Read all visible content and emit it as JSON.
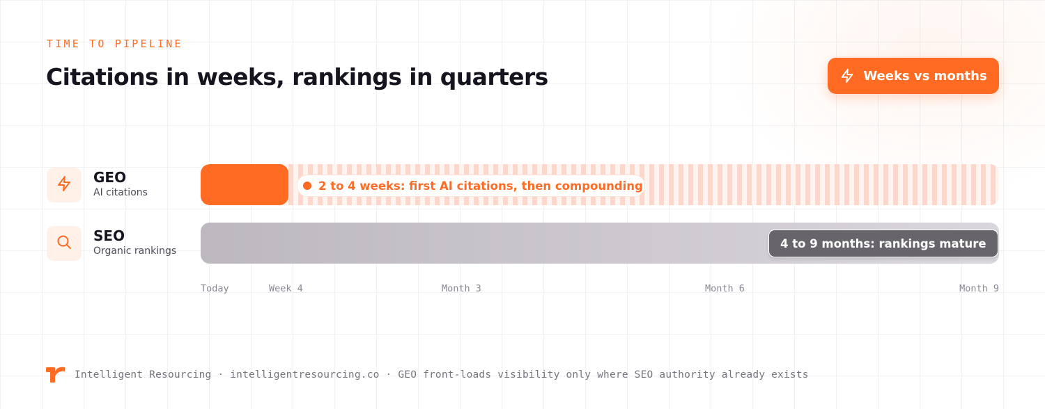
{
  "header": {
    "eyebrow": "TIME TO PIPELINE",
    "title": "Citations in weeks, rankings in quarters",
    "pill_label": "Weeks vs months",
    "pill_icon": "lightning-icon"
  },
  "rows": [
    {
      "name": "GEO",
      "subtitle": "AI citations",
      "icon": "lightning-icon",
      "callout": "2 to 4 weeks: first AI citations, then compounding",
      "fill_end_fraction": 0.11
    },
    {
      "name": "SEO",
      "subtitle": "Organic rankings",
      "icon": "search-icon",
      "callout": "4 to 9 months: rankings mature",
      "fill_end_fraction": 1.0
    }
  ],
  "timeline": {
    "ticks": [
      "Today",
      "Week 4",
      "Month 3",
      "Month 6",
      "Month 9"
    ]
  },
  "footer": {
    "text": "Intelligent Resourcing · intelligentresourcing.co · GEO front-loads visibility only where SEO authority already exists"
  },
  "colors": {
    "accent": "#ff6b22",
    "geo_track_stripe": "#fbd8cb",
    "seo_track": "#cdc9cf",
    "seo_callout": "#67646b"
  }
}
